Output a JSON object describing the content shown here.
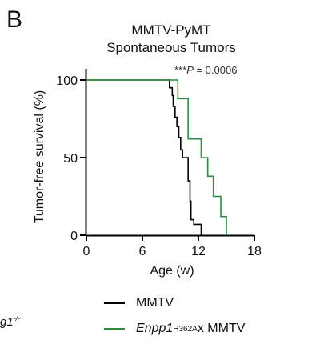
{
  "panel_label": "B",
  "chart_data": {
    "type": "line",
    "subtype": "kaplan-meier step survival curve",
    "title_lines": [
      "MMTV-PyMT",
      "Spontaneous Tumors"
    ],
    "xlabel": "Age (w)",
    "ylabel": "Tumor-free survival (%)",
    "xlim": [
      0,
      18
    ],
    "ylim": [
      0,
      100
    ],
    "xticks": [
      0,
      6,
      12,
      18
    ],
    "yticks": [
      0,
      50,
      100
    ],
    "annotation": {
      "stars": "***",
      "p_symbol": "P",
      "rest": " = 0.0006"
    },
    "grid": false,
    "legend_position": "bottom",
    "series": [
      {
        "name": "MMTV",
        "color": "#000000",
        "steps": [
          [
            0,
            100
          ],
          [
            8.9,
            100
          ],
          [
            8.9,
            95
          ],
          [
            9.2,
            95
          ],
          [
            9.2,
            90
          ],
          [
            9.3,
            90
          ],
          [
            9.3,
            83
          ],
          [
            9.5,
            83
          ],
          [
            9.5,
            76
          ],
          [
            9.7,
            76
          ],
          [
            9.7,
            70
          ],
          [
            9.9,
            70
          ],
          [
            9.9,
            63
          ],
          [
            10.1,
            63
          ],
          [
            10.1,
            55
          ],
          [
            10.3,
            55
          ],
          [
            10.3,
            50
          ],
          [
            10.9,
            50
          ],
          [
            10.9,
            35
          ],
          [
            11.1,
            35
          ],
          [
            11.1,
            22
          ],
          [
            11.2,
            22
          ],
          [
            11.2,
            10
          ],
          [
            11.5,
            10
          ],
          [
            11.5,
            7
          ],
          [
            12.3,
            7
          ],
          [
            12.3,
            0
          ]
        ]
      },
      {
        "name_italic": "Enpp1",
        "name_sup": "H362A",
        "name_rest": " x MMTV",
        "color": "#2e8b40",
        "steps": [
          [
            0,
            100
          ],
          [
            9.8,
            100
          ],
          [
            9.8,
            88
          ],
          [
            10.9,
            88
          ],
          [
            10.9,
            62
          ],
          [
            12.3,
            62
          ],
          [
            12.3,
            50
          ],
          [
            13.0,
            50
          ],
          [
            13.0,
            38
          ],
          [
            13.6,
            38
          ],
          [
            13.6,
            25
          ],
          [
            14.4,
            25
          ],
          [
            14.4,
            12
          ],
          [
            15.0,
            12
          ],
          [
            15.0,
            0
          ]
        ]
      }
    ]
  },
  "cut_off_legend_fragment": {
    "text": "g1",
    "sup": "-/-"
  }
}
